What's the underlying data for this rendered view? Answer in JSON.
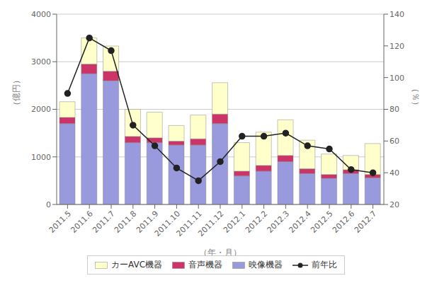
{
  "chart_data": {
    "type": "bar",
    "stacked": true,
    "grid": true,
    "legend": "bottom",
    "xlabel": "（年・月）",
    "ylabel": "（億円）",
    "y2label": "（％）",
    "categories": [
      "2011.5",
      "2011.6",
      "2011.7",
      "2011.8",
      "2011.9",
      "2011.10",
      "2011.11",
      "2011.12",
      "2012.1",
      "2012.2",
      "2012.3",
      "2012.4",
      "2012.5",
      "2012.6",
      "2012.7"
    ],
    "ylim": [
      0,
      4000
    ],
    "yticks": [
      0,
      1000,
      2000,
      3000,
      4000
    ],
    "y2lim": [
      20,
      140
    ],
    "y2ticks": [
      20,
      40,
      60,
      80,
      100,
      120,
      140
    ],
    "series": [
      {
        "name": "映像機器",
        "color": "#9999dd",
        "values": [
          1700,
          2750,
          2600,
          1300,
          1300,
          1250,
          1250,
          1700,
          600,
          700,
          900,
          650,
          550,
          650,
          560
        ]
      },
      {
        "name": "音声機器",
        "color": "#cc3366",
        "values": [
          130,
          200,
          200,
          130,
          100,
          80,
          130,
          200,
          100,
          120,
          130,
          100,
          80,
          80,
          70
        ]
      },
      {
        "name": "カーAVC機器",
        "color": "#ffffcc",
        "values": [
          330,
          550,
          530,
          570,
          540,
          330,
          500,
          660,
          600,
          700,
          750,
          600,
          430,
          300,
          650
        ]
      },
      {
        "name": "前年比",
        "type": "line",
        "axis": "y2",
        "marker": "o",
        "color": "#222222",
        "values": [
          90,
          125,
          117,
          70,
          57,
          43,
          35,
          47,
          63,
          63,
          65,
          57,
          55,
          42,
          40
        ]
      }
    ]
  }
}
